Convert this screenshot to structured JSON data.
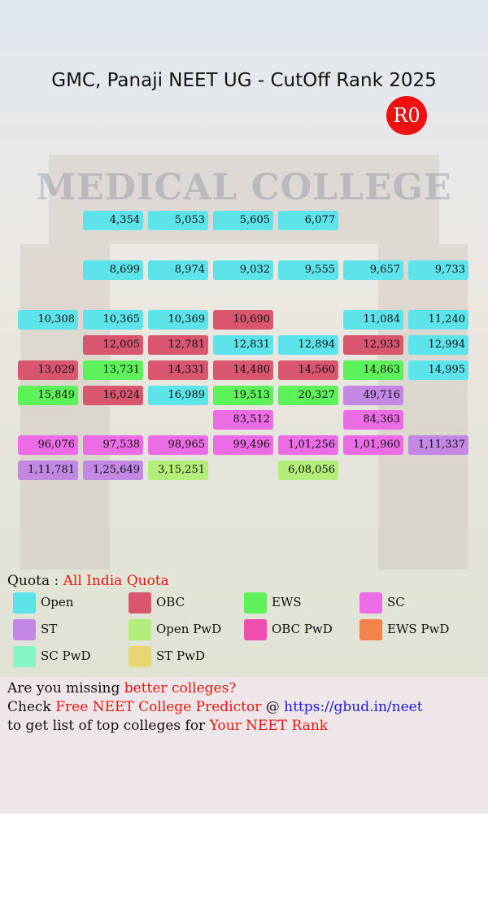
{
  "header": {
    "title": "GMC, Panaji NEET UG - CutOff Rank 2025",
    "round": "R0",
    "background_text": "MEDICAL COLLEGE"
  },
  "grid": {
    "rows": [
      [
        null,
        {
          "text": "4,354",
          "color": "#5de3ea"
        },
        {
          "text": "5,053",
          "color": "#5de3ea"
        },
        {
          "text": "5,605",
          "color": "#5de3ea"
        },
        {
          "text": "6,077",
          "color": "#5de3ea"
        },
        null,
        null
      ],
      [
        null,
        {
          "text": "8,699",
          "color": "#5de3ea"
        },
        {
          "text": "8,974",
          "color": "#5de3ea"
        },
        {
          "text": "9,032",
          "color": "#5de3ea"
        },
        {
          "text": "9,555",
          "color": "#5de3ea"
        },
        {
          "text": "9,657",
          "color": "#5de3ea"
        },
        {
          "text": "9,733",
          "color": "#5de3ea"
        }
      ],
      [
        {
          "text": "10,308",
          "color": "#5de3ea"
        },
        {
          "text": "10,365",
          "color": "#5de3ea"
        },
        {
          "text": "10,369",
          "color": "#5de3ea"
        },
        {
          "text": "10,690",
          "color": "#d9566f"
        },
        null,
        {
          "text": "11,084",
          "color": "#5de3ea"
        },
        {
          "text": "11,240",
          "color": "#5de3ea"
        }
      ],
      [
        null,
        {
          "text": "12,005",
          "color": "#d9566f"
        },
        {
          "text": "12,781",
          "color": "#d9566f"
        },
        {
          "text": "12,831",
          "color": "#5de3ea"
        },
        {
          "text": "12,894",
          "color": "#5de3ea"
        },
        {
          "text": "12,933",
          "color": "#d9566f"
        },
        {
          "text": "12,994",
          "color": "#5de3ea"
        }
      ],
      [
        {
          "text": "13,029",
          "color": "#d9566f"
        },
        {
          "text": "13,731",
          "color": "#5ef25a"
        },
        {
          "text": "14,331",
          "color": "#d9566f"
        },
        {
          "text": "14,480",
          "color": "#d9566f"
        },
        {
          "text": "14,560",
          "color": "#d9566f"
        },
        {
          "text": "14,863",
          "color": "#5ef25a"
        },
        {
          "text": "14,995",
          "color": "#5de3ea"
        }
      ],
      [
        {
          "text": "15,849",
          "color": "#5ef25a"
        },
        {
          "text": "16,024",
          "color": "#d9566f"
        },
        {
          "text": "16,989",
          "color": "#5de3ea"
        },
        {
          "text": "19,513",
          "color": "#5ef25a"
        },
        {
          "text": "20,327",
          "color": "#5ef25a"
        },
        {
          "text": "49,716",
          "color": "#c387e4"
        },
        null
      ],
      [
        null,
        null,
        null,
        {
          "text": "83,512",
          "color": "#ec6ce6"
        },
        null,
        {
          "text": "84,363",
          "color": "#ec6ce6"
        },
        null
      ],
      [
        {
          "text": "96,076",
          "color": "#ec6ce6"
        },
        {
          "text": "97,538",
          "color": "#ec6ce6"
        },
        {
          "text": "98,965",
          "color": "#ec6ce6"
        },
        {
          "text": "99,496",
          "color": "#ec6ce6"
        },
        {
          "text": "1,01,256",
          "color": "#ec6ce6"
        },
        {
          "text": "1,01,960",
          "color": "#ec6ce6"
        },
        {
          "text": "1,11,337",
          "color": "#c387e4"
        }
      ],
      [
        {
          "text": "1,11,781",
          "color": "#c387e4"
        },
        {
          "text": "1,25,649",
          "color": "#c387e4"
        },
        {
          "text": "3,15,251",
          "color": "#b2ee79"
        },
        null,
        {
          "text": "6,08,056",
          "color": "#b2ee79"
        },
        null,
        null
      ]
    ]
  },
  "legend": {
    "label": "Quota :",
    "quota": "All India Quota",
    "items": [
      {
        "name": "Open",
        "color": "#5de3ea"
      },
      {
        "name": "OBC",
        "color": "#d9566f"
      },
      {
        "name": "EWS",
        "color": "#5ef25a"
      },
      {
        "name": "SC",
        "color": "#ec6ce6"
      },
      {
        "name": "ST",
        "color": "#c387e4"
      },
      {
        "name": "Open PwD",
        "color": "#b2ee79"
      },
      {
        "name": "OBC PwD",
        "color": "#ee4fae"
      },
      {
        "name": "EWS PwD",
        "color": "#f4844e"
      },
      {
        "name": "SC PwD",
        "color": "#84f7c4"
      },
      {
        "name": "ST PwD",
        "color": "#e8d674"
      }
    ]
  },
  "footer": {
    "lines": [
      [
        {
          "text": "Are you missing ",
          "color": "#111111"
        },
        {
          "text": "better colleges?",
          "color": "#e8160c"
        }
      ],
      [
        {
          "text": "Check ",
          "color": "#111111"
        },
        {
          "text": "Free NEET College Predictor",
          "color": "#e8160c"
        },
        {
          "text": " @ ",
          "color": "#111111"
        },
        {
          "text": "https://gbud.in/neet",
          "color": "#1a1ad6"
        }
      ],
      [
        {
          "text": "to get list of top colleges for ",
          "color": "#111111"
        },
        {
          "text": "Your NEET Rank",
          "color": "#e8160c"
        }
      ]
    ]
  }
}
